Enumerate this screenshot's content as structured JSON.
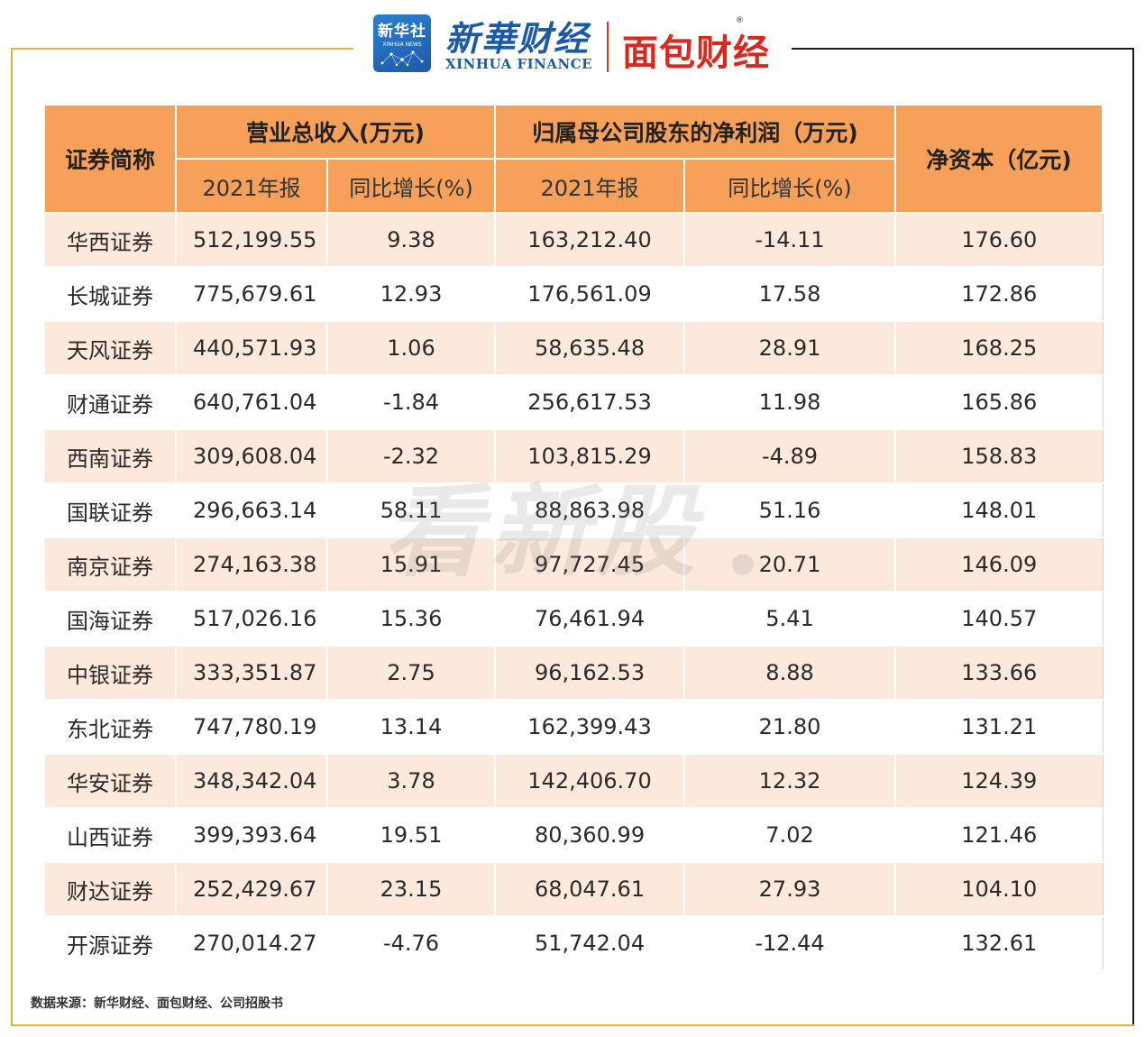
{
  "header": {
    "xinhua_logo_line1": "新华社",
    "xinhua_logo_line2": "XINHUA NEWS",
    "xinhua_brand": "新華财经",
    "xinhua_sub": "XINHUA FINANCE",
    "mianbao_brand": "面包财经",
    "registered_mark": "®"
  },
  "table": {
    "col_name": "证券简称",
    "group_revenue": "营业总收入(万元)",
    "group_profit": "归属母公司股东的净利润（万元)",
    "col_capital": "净资本（亿元)",
    "sub_year": "2021年报",
    "sub_growth": "同比增长(%)",
    "rows": [
      {
        "name": "华西证券",
        "revenue": "512,199.55",
        "revenue_growth": "9.38",
        "profit": "163,212.40",
        "profit_growth": "-14.11",
        "capital": "176.60"
      },
      {
        "name": "长城证券",
        "revenue": "775,679.61",
        "revenue_growth": "12.93",
        "profit": "176,561.09",
        "profit_growth": "17.58",
        "capital": "172.86"
      },
      {
        "name": "天风证券",
        "revenue": "440,571.93",
        "revenue_growth": "1.06",
        "profit": "58,635.48",
        "profit_growth": "28.91",
        "capital": "168.25"
      },
      {
        "name": "财通证券",
        "revenue": "640,761.04",
        "revenue_growth": "-1.84",
        "profit": "256,617.53",
        "profit_growth": "11.98",
        "capital": "165.86"
      },
      {
        "name": "西南证券",
        "revenue": "309,608.04",
        "revenue_growth": "-2.32",
        "profit": "103,815.29",
        "profit_growth": "-4.89",
        "capital": "158.83"
      },
      {
        "name": "国联证券",
        "revenue": "296,663.14",
        "revenue_growth": "58.11",
        "profit": "88,863.98",
        "profit_growth": "51.16",
        "capital": "148.01"
      },
      {
        "name": "南京证券",
        "revenue": "274,163.38",
        "revenue_growth": "15.91",
        "profit": "97,727.45",
        "profit_growth": "20.71",
        "capital": "146.09"
      },
      {
        "name": "国海证券",
        "revenue": "517,026.16",
        "revenue_growth": "15.36",
        "profit": "76,461.94",
        "profit_growth": "5.41",
        "capital": "140.57"
      },
      {
        "name": "中银证券",
        "revenue": "333,351.87",
        "revenue_growth": "2.75",
        "profit": "96,162.53",
        "profit_growth": "8.88",
        "capital": "133.66"
      },
      {
        "name": "东北证券",
        "revenue": "747,780.19",
        "revenue_growth": "13.14",
        "profit": "162,399.43",
        "profit_growth": "21.80",
        "capital": "131.21"
      },
      {
        "name": "华安证券",
        "revenue": "348,342.04",
        "revenue_growth": "3.78",
        "profit": "142,406.70",
        "profit_growth": "12.32",
        "capital": "124.39"
      },
      {
        "name": "山西证券",
        "revenue": "399,393.64",
        "revenue_growth": "19.51",
        "profit": "80,360.99",
        "profit_growth": "7.02",
        "capital": "121.46"
      },
      {
        "name": "财达证券",
        "revenue": "252,429.67",
        "revenue_growth": "23.15",
        "profit": "68,047.61",
        "profit_growth": "27.93",
        "capital": "104.10"
      },
      {
        "name": "开源证券",
        "revenue": "270,014.27",
        "revenue_growth": "-4.76",
        "profit": "51,742.04",
        "profit_growth": "-12.44",
        "capital": "132.61"
      }
    ]
  },
  "watermark": "看新股",
  "source_note": "数据来源：新华财经、面包财经、公司招股书",
  "colors": {
    "header_bg": "#f6a05a",
    "row_alt_bg": "#fde9dc",
    "frame_gold": "#e8b33a",
    "brand_blue": "#1c5aa8",
    "brand_red": "#d9281e"
  }
}
